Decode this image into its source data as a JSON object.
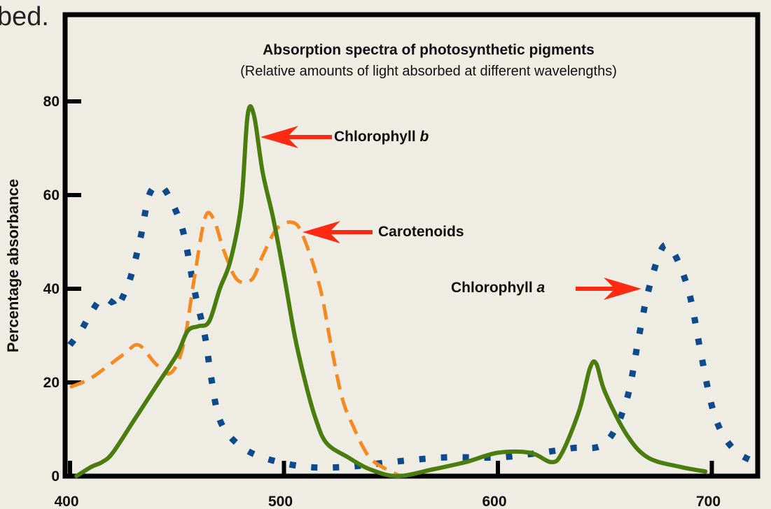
{
  "page_fragment": "bed.",
  "chart_data": {
    "type": "line",
    "title": "Absorption spectra of photosynthetic pigments",
    "subtitle": "(Relative amounts of light absorbed at different wavelengths)",
    "xlabel": "",
    "ylabel": "Percentage absorbance",
    "xlim": [
      400,
      725
    ],
    "ylim": [
      0,
      100
    ],
    "x_ticks": [
      "400",
      "500",
      "600",
      "700"
    ],
    "y_ticks": [
      "0",
      "20",
      "40",
      "60",
      "80"
    ],
    "grid": false,
    "legend": "callout arrows",
    "series": [
      {
        "name": "Chlorophyll b",
        "label_prefix": "Chlorophyll ",
        "label_suffix": "b",
        "style": "solid",
        "color": "#4a7d0e",
        "points": [
          [
            403,
            0
          ],
          [
            410,
            2
          ],
          [
            415,
            3
          ],
          [
            420,
            5
          ],
          [
            430,
            12
          ],
          [
            440,
            19
          ],
          [
            450,
            26
          ],
          [
            455,
            31
          ],
          [
            460,
            32
          ],
          [
            465,
            33
          ],
          [
            470,
            40
          ],
          [
            475,
            46
          ],
          [
            480,
            58
          ],
          [
            483,
            77
          ],
          [
            486,
            77
          ],
          [
            490,
            65
          ],
          [
            495,
            55
          ],
          [
            500,
            43
          ],
          [
            505,
            30
          ],
          [
            510,
            20
          ],
          [
            515,
            12
          ],
          [
            520,
            7
          ],
          [
            530,
            4
          ],
          [
            540,
            1.5
          ],
          [
            553,
            0
          ],
          [
            570,
            1.5
          ],
          [
            585,
            3
          ],
          [
            600,
            5
          ],
          [
            615,
            5
          ],
          [
            625,
            3
          ],
          [
            630,
            5
          ],
          [
            638,
            14
          ],
          [
            643,
            23
          ],
          [
            646,
            24
          ],
          [
            650,
            18
          ],
          [
            660,
            9
          ],
          [
            670,
            4
          ],
          [
            685,
            2
          ],
          [
            697,
            1
          ]
        ]
      },
      {
        "name": "Carotenoids",
        "style": "dashed",
        "color": "#f6891f",
        "points": [
          [
            400,
            19
          ],
          [
            410,
            21
          ],
          [
            425,
            26
          ],
          [
            432,
            28
          ],
          [
            440,
            24
          ],
          [
            447,
            22
          ],
          [
            453,
            28
          ],
          [
            458,
            42
          ],
          [
            463,
            55
          ],
          [
            467,
            55
          ],
          [
            472,
            48
          ],
          [
            478,
            42
          ],
          [
            485,
            42
          ],
          [
            490,
            47
          ],
          [
            497,
            53
          ],
          [
            505,
            54
          ],
          [
            510,
            50
          ],
          [
            517,
            40
          ],
          [
            522,
            28
          ],
          [
            527,
            17
          ],
          [
            532,
            11
          ],
          [
            540,
            4
          ],
          [
            550,
            1
          ],
          [
            555,
            0
          ]
        ]
      },
      {
        "name": "Chlorophyll a",
        "label_prefix": "Chlorophyll ",
        "label_suffix": "a",
        "style": "dotted",
        "color": "#0d4a8c",
        "points": [
          [
            400,
            28
          ],
          [
            405,
            31
          ],
          [
            410,
            35
          ],
          [
            415,
            38
          ],
          [
            420,
            37
          ],
          [
            422,
            36
          ],
          [
            428,
            42
          ],
          [
            433,
            51
          ],
          [
            437,
            60
          ],
          [
            442,
            62
          ],
          [
            447,
            59
          ],
          [
            453,
            52
          ],
          [
            458,
            40
          ],
          [
            463,
            30
          ],
          [
            466,
            21
          ],
          [
            470,
            12
          ],
          [
            478,
            7
          ],
          [
            490,
            4
          ],
          [
            510,
            2
          ],
          [
            530,
            2
          ],
          [
            550,
            3
          ],
          [
            575,
            4
          ],
          [
            600,
            4
          ],
          [
            620,
            5
          ],
          [
            635,
            6
          ],
          [
            650,
            7
          ],
          [
            660,
            16
          ],
          [
            666,
            30
          ],
          [
            670,
            39
          ],
          [
            676,
            48
          ],
          [
            680,
            49
          ],
          [
            685,
            45
          ],
          [
            690,
            38
          ],
          [
            695,
            26
          ],
          [
            700,
            15
          ],
          [
            705,
            9
          ],
          [
            712,
            5
          ],
          [
            720,
            3
          ],
          [
            723,
            2
          ]
        ]
      }
    ]
  }
}
